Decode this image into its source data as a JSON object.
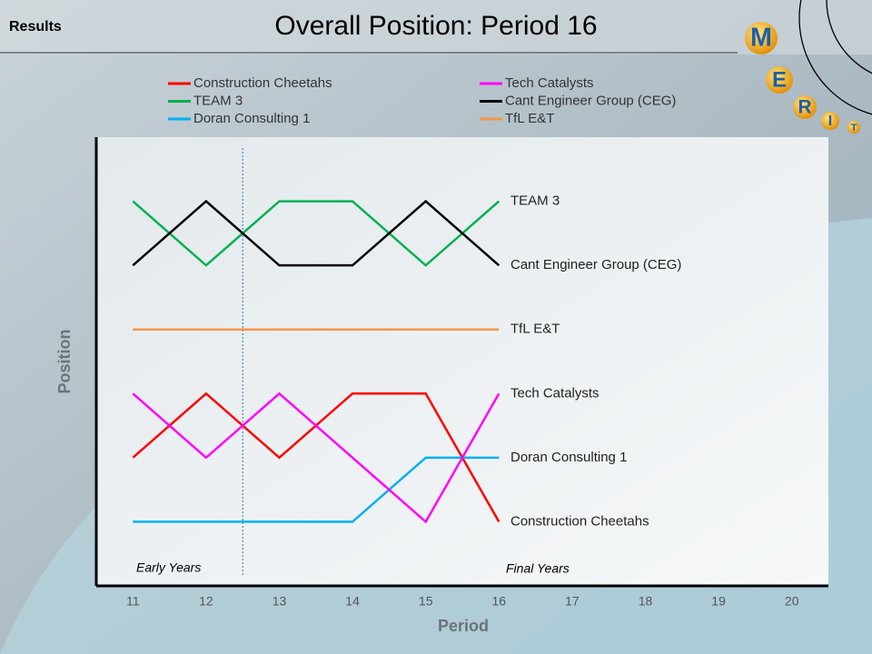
{
  "header": "Results",
  "logo": [
    "M",
    "E",
    "R",
    "I",
    "T"
  ],
  "chart_data": {
    "type": "line",
    "title": "Overall Position: Period 16",
    "x_label": "Period",
    "y_label": "Position",
    "x": [
      11,
      12,
      13,
      14,
      15,
      16
    ],
    "xlim": [
      10.5,
      20.5
    ],
    "xticks": [
      11,
      12,
      13,
      14,
      15,
      16,
      17,
      18,
      19,
      20
    ],
    "ylim": [
      7,
      0
    ],
    "divider_x": 12.5,
    "annotations": [
      "Early Years",
      "Final Years"
    ],
    "series": [
      {
        "name": "Construction Cheetahs",
        "color": "#ff0000",
        "values": [
          5,
          4,
          5,
          4,
          4,
          6
        ]
      },
      {
        "name": "TEAM 3",
        "color": "#00b050",
        "values": [
          1,
          2,
          1,
          1,
          2,
          1
        ]
      },
      {
        "name": "Doran Consulting 1",
        "color": "#00b0f0",
        "values": [
          6,
          6,
          6,
          6,
          5,
          5
        ]
      },
      {
        "name": "Tech Catalysts",
        "color": "#ff00ff",
        "values": [
          4,
          5,
          4,
          5,
          6,
          4
        ]
      },
      {
        "name": "Cant Engineer Group (CEG)",
        "color": "#000000",
        "values": [
          2,
          1,
          2,
          2,
          1,
          2
        ]
      },
      {
        "name": "TfL E&T",
        "color": "#f79646",
        "values": [
          3,
          3,
          3,
          3,
          3,
          3
        ]
      }
    ]
  }
}
